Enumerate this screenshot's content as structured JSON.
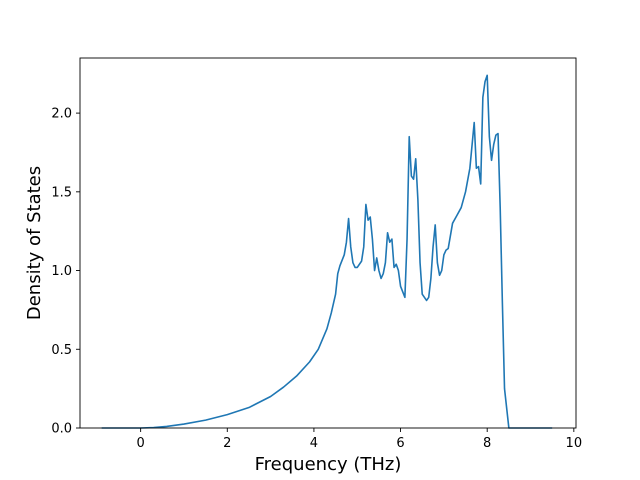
{
  "chart_data": {
    "type": "line",
    "title": "",
    "xlabel": "Frequency (THz)",
    "ylabel": "Density of States",
    "xlim": [
      -1.4,
      10.05
    ],
    "ylim": [
      0.0,
      2.35
    ],
    "xticks": [
      0,
      2,
      4,
      6,
      8,
      10
    ],
    "xtick_labels": [
      "0",
      "2",
      "4",
      "6",
      "8",
      "10"
    ],
    "yticks": [
      0.0,
      0.5,
      1.0,
      1.5,
      2.0
    ],
    "ytick_labels": [
      "0.0",
      "0.5",
      "1.0",
      "1.5",
      "2.0"
    ],
    "grid": false,
    "line_color": "#1f77b4",
    "series": [
      {
        "x": [
          -0.9,
          -0.5,
          0.0,
          0.3,
          0.6,
          1.0,
          1.5,
          2.0,
          2.5,
          3.0,
          3.3,
          3.6,
          3.9,
          4.1,
          4.3,
          4.4,
          4.5,
          4.55,
          4.6,
          4.7,
          4.75,
          4.8,
          4.85,
          4.9,
          4.95,
          5.0,
          5.1,
          5.15,
          5.2,
          5.25,
          5.3,
          5.35,
          5.4,
          5.45,
          5.5,
          5.55,
          5.6,
          5.65,
          5.7,
          5.75,
          5.8,
          5.85,
          5.9,
          5.95,
          6.0,
          6.1,
          6.15,
          6.2,
          6.25,
          6.3,
          6.35,
          6.4,
          6.45,
          6.5,
          6.6,
          6.65,
          6.7,
          6.75,
          6.8,
          6.85,
          6.9,
          6.95,
          7.0,
          7.05,
          7.1,
          7.2,
          7.3,
          7.4,
          7.5,
          7.6,
          7.7,
          7.75,
          7.8,
          7.85,
          7.9,
          7.95,
          8.0,
          8.05,
          8.1,
          8.15,
          8.2,
          8.25,
          8.3,
          8.35,
          8.4,
          8.5,
          8.6,
          8.7,
          9.0,
          9.5
        ],
        "y": [
          0.0,
          0.0,
          0.0,
          0.003,
          0.01,
          0.025,
          0.05,
          0.085,
          0.13,
          0.2,
          0.26,
          0.33,
          0.42,
          0.5,
          0.63,
          0.73,
          0.85,
          0.98,
          1.03,
          1.1,
          1.18,
          1.33,
          1.15,
          1.05,
          1.02,
          1.02,
          1.06,
          1.15,
          1.42,
          1.32,
          1.34,
          1.2,
          1.0,
          1.08,
          1.0,
          0.95,
          0.98,
          1.05,
          1.24,
          1.18,
          1.2,
          1.02,
          1.04,
          1.0,
          0.9,
          0.83,
          1.2,
          1.85,
          1.6,
          1.58,
          1.71,
          1.45,
          1.05,
          0.85,
          0.81,
          0.83,
          0.95,
          1.15,
          1.29,
          1.05,
          0.97,
          1.0,
          1.1,
          1.13,
          1.14,
          1.3,
          1.35,
          1.4,
          1.5,
          1.65,
          1.94,
          1.65,
          1.66,
          1.55,
          2.1,
          2.2,
          2.24,
          1.85,
          1.7,
          1.8,
          1.86,
          1.87,
          1.4,
          0.8,
          0.25,
          0.0,
          0.0,
          0.0,
          0.0,
          0.0
        ]
      }
    ]
  }
}
